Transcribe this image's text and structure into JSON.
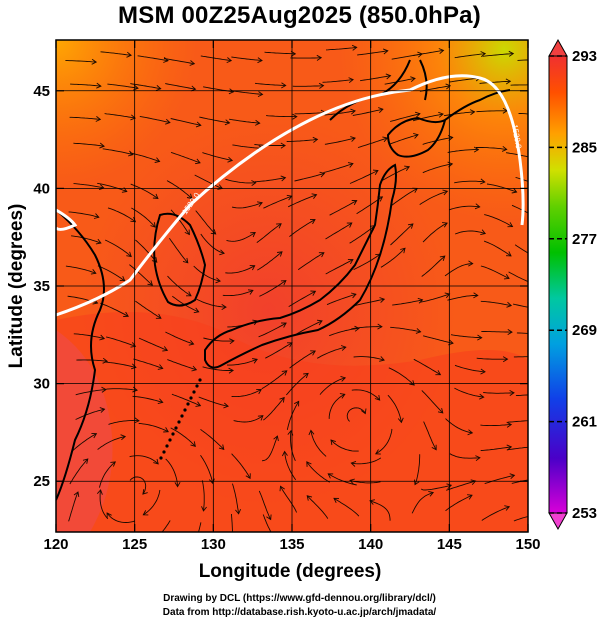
{
  "title": "MSM 00Z25Aug2025 (850.0hPa)",
  "axes": {
    "xlabel": "Longitude (degrees)",
    "ylabel": "Latitude  (degrees)",
    "x_ticks": [
      "120",
      "125",
      "130",
      "135",
      "140",
      "145",
      "150"
    ],
    "y_ticks": [
      "45",
      "40",
      "35",
      "30",
      "25"
    ],
    "xlim": [
      120,
      150
    ],
    "ylim": [
      22.4,
      47.6
    ]
  },
  "colorbar": {
    "ticks": [
      "293",
      "285",
      "277",
      "269",
      "261",
      "253"
    ],
    "range": [
      253,
      293
    ],
    "colors": [
      "#d800d8",
      "#4a00c8",
      "#1040e8",
      "#00a0e0",
      "#00c8a0",
      "#00c000",
      "#60d000",
      "#d0e000",
      "#ffa000",
      "#ff5000",
      "#f03030"
    ]
  },
  "contour_labels": [
    "1520.0",
    "1520.0"
  ],
  "credits": {
    "line1": "Drawing by DCL (https://www.gfd-dennou.org/library/dcl/)",
    "line2": "Data from http://database.rish.kyoto-u.ac.jp/arch/jmadata/"
  }
}
